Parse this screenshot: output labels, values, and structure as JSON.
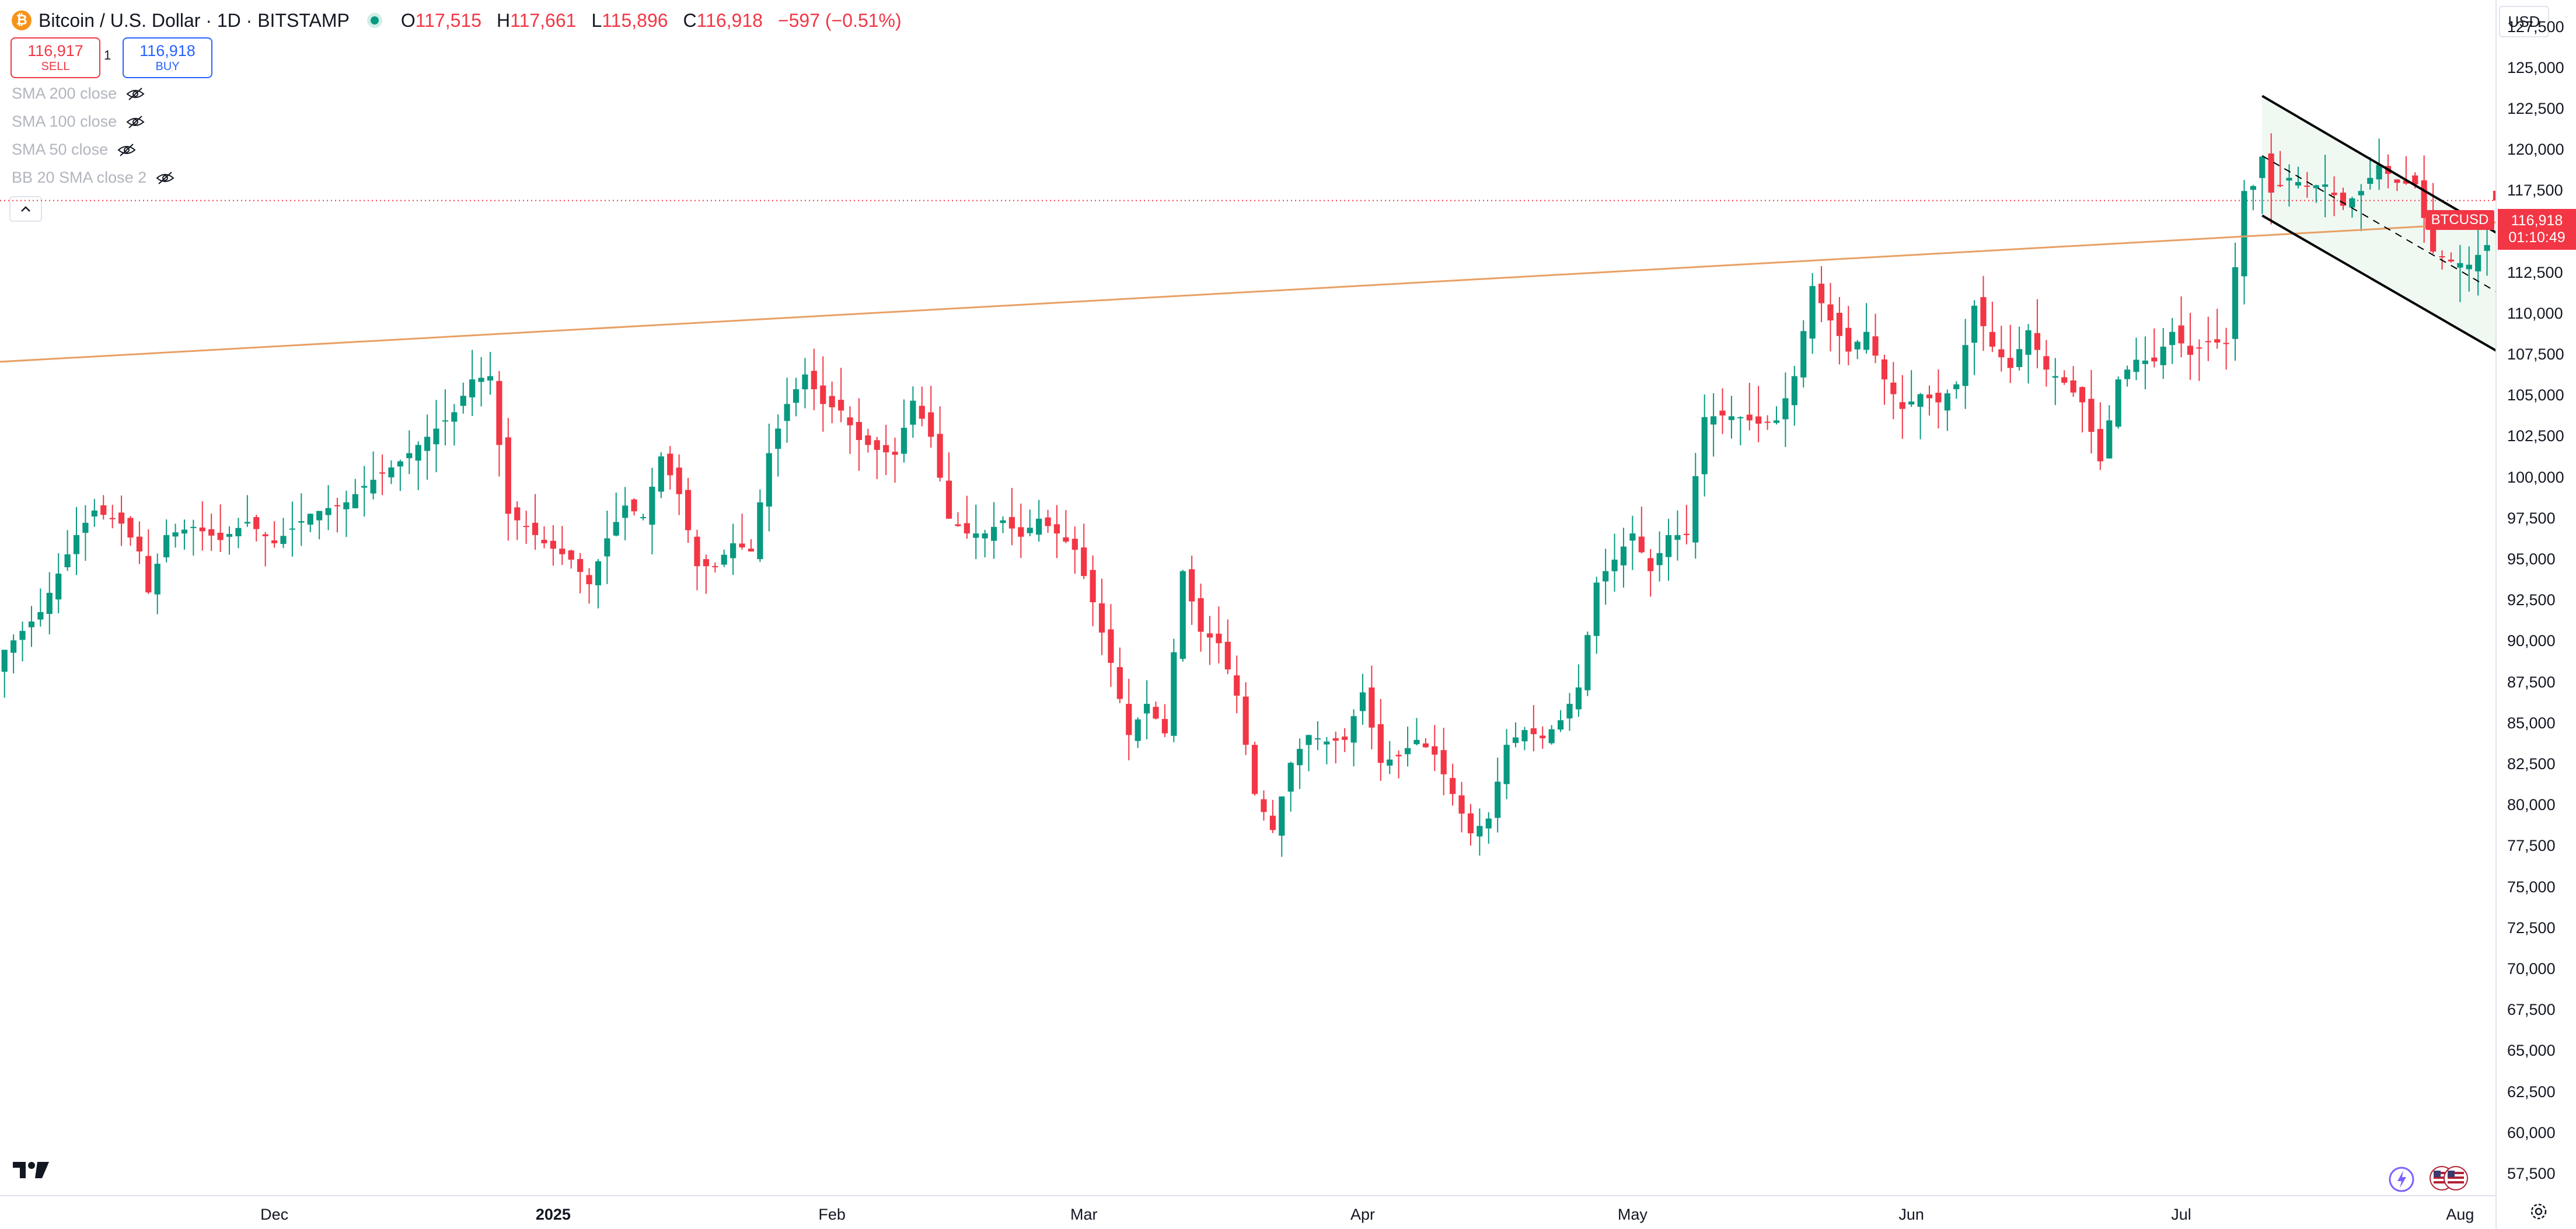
{
  "header": {
    "logo_glyph": "₿",
    "title": "Bitcoin / U.S. Dollar · 1D · BITSTAMP",
    "ohlc": [
      {
        "key": "O",
        "value": "117,515"
      },
      {
        "key": "H",
        "value": "117,661"
      },
      {
        "key": "L",
        "value": "115,896"
      },
      {
        "key": "C",
        "value": "116,918"
      }
    ],
    "change": "−597 (−0.51%)"
  },
  "trade": {
    "sell_price": "116,917",
    "sell_label": "SELL",
    "spread": "1",
    "buy_price": "116,918",
    "buy_label": "BUY"
  },
  "indicators": [
    {
      "label": "SMA 200 close"
    },
    {
      "label": "SMA 100 close"
    },
    {
      "label": "SMA 50 close"
    },
    {
      "label": "BB 20 SMA close 2"
    }
  ],
  "currency": "USD",
  "price_tag": {
    "symbol": "BTCUSD",
    "price": "116,918",
    "countdown": "01:10:49"
  },
  "colors": {
    "up": "#089981",
    "down": "#f23645",
    "trendline": "#e8a064",
    "channel": "#000000",
    "channel_fill": "#e6f3ea"
  },
  "chart_data": {
    "type": "candlestick",
    "title": "Bitcoin / U.S. Dollar · 1D · BITSTAMP",
    "ylim": [
      56500,
      128800
    ],
    "y_ticks": [
      "127,500",
      "125,000",
      "122,500",
      "120,000",
      "117,500",
      "115,000",
      "112,500",
      "110,000",
      "107,500",
      "105,000",
      "102,500",
      "100,000",
      "97,500",
      "95,000",
      "92,500",
      "90,000",
      "87,500",
      "85,000",
      "82,500",
      "80,000",
      "77,500",
      "75,000",
      "72,500",
      "70,000",
      "67,500",
      "65,000",
      "62,500",
      "60,000",
      "57,500"
    ],
    "x_ticks": [
      {
        "label": "Dec",
        "index": 30,
        "bold": false
      },
      {
        "label": "2025",
        "index": 61,
        "bold": true
      },
      {
        "label": "Feb",
        "index": 92,
        "bold": false
      },
      {
        "label": "Mar",
        "index": 120,
        "bold": false
      },
      {
        "label": "Apr",
        "index": 151,
        "bold": false
      },
      {
        "label": "May",
        "index": 181,
        "bold": false
      },
      {
        "label": "Jun",
        "index": 212,
        "bold": false
      },
      {
        "label": "Jul",
        "index": 242,
        "bold": false
      },
      {
        "label": "Aug",
        "index": 273,
        "bold": false
      }
    ],
    "visible_days": 277.5,
    "first_index": 0,
    "anchors": [
      [
        0,
        89500
      ],
      [
        4,
        91800
      ],
      [
        8,
        96500
      ],
      [
        10,
        98000
      ],
      [
        13,
        97200
      ],
      [
        15,
        95500
      ],
      [
        16,
        93000
      ],
      [
        18,
        96500
      ],
      [
        21,
        97000
      ],
      [
        24,
        96200
      ],
      [
        27,
        97300
      ],
      [
        30,
        96000
      ],
      [
        34,
        97800
      ],
      [
        38,
        98500
      ],
      [
        40,
        99500
      ],
      [
        44,
        101000
      ],
      [
        47,
        102500
      ],
      [
        50,
        104000
      ],
      [
        52,
        106000
      ],
      [
        54,
        106200
      ],
      [
        56,
        97800
      ],
      [
        58,
        97000
      ],
      [
        60,
        96000
      ],
      [
        63,
        95000
      ],
      [
        65,
        93500
      ],
      [
        67,
        96300
      ],
      [
        69,
        98300
      ],
      [
        71,
        97600
      ],
      [
        73,
        101300
      ],
      [
        75,
        99000
      ],
      [
        77,
        94600
      ],
      [
        79,
        94600
      ],
      [
        81,
        96000
      ],
      [
        83,
        95500
      ],
      [
        85,
        101500
      ],
      [
        87,
        104500
      ],
      [
        89,
        106300
      ],
      [
        91,
        104500
      ],
      [
        93,
        104100
      ],
      [
        95,
        102300
      ],
      [
        97,
        101700
      ],
      [
        99,
        101400
      ],
      [
        101,
        104700
      ],
      [
        103,
        102500
      ],
      [
        105,
        97500
      ],
      [
        107,
        96600
      ],
      [
        109,
        96600
      ],
      [
        111,
        97400
      ],
      [
        113,
        96400
      ],
      [
        115,
        97500
      ],
      [
        117,
        96600
      ],
      [
        119,
        95600
      ],
      [
        121,
        92400
      ],
      [
        123,
        88700
      ],
      [
        125,
        84300
      ],
      [
        127,
        86200
      ],
      [
        129,
        84400
      ],
      [
        131,
        94300
      ],
      [
        133,
        90600
      ],
      [
        135,
        89900
      ],
      [
        137,
        86700
      ],
      [
        139,
        80700
      ],
      [
        141,
        78500
      ],
      [
        143,
        82600
      ],
      [
        145,
        84300
      ],
      [
        147,
        83900
      ],
      [
        149,
        84000
      ],
      [
        151,
        86900
      ],
      [
        153,
        82600
      ],
      [
        155,
        83000
      ],
      [
        157,
        84000
      ],
      [
        159,
        83100
      ],
      [
        161,
        80700
      ],
      [
        163,
        78300
      ],
      [
        165,
        79200
      ],
      [
        167,
        83700
      ],
      [
        169,
        84600
      ],
      [
        171,
        84100
      ],
      [
        173,
        85200
      ],
      [
        175,
        87200
      ],
      [
        177,
        93600
      ],
      [
        179,
        95000
      ],
      [
        181,
        96600
      ],
      [
        183,
        94300
      ],
      [
        185,
        96500
      ],
      [
        187,
        96500
      ],
      [
        189,
        103700
      ],
      [
        191,
        103800
      ],
      [
        193,
        103700
      ],
      [
        195,
        103300
      ],
      [
        197,
        103500
      ],
      [
        199,
        106200
      ],
      [
        201,
        111700
      ],
      [
        203,
        109600
      ],
      [
        205,
        107700
      ],
      [
        207,
        108900
      ],
      [
        209,
        106000
      ],
      [
        211,
        104200
      ],
      [
        213,
        105100
      ],
      [
        215,
        104600
      ],
      [
        217,
        105700
      ],
      [
        219,
        110500
      ],
      [
        221,
        108000
      ],
      [
        223,
        106700
      ],
      [
        225,
        109000
      ],
      [
        227,
        106600
      ],
      [
        229,
        105800
      ],
      [
        231,
        104600
      ],
      [
        233,
        101000
      ],
      [
        235,
        106000
      ],
      [
        237,
        107200
      ],
      [
        239,
        107100
      ],
      [
        241,
        108900
      ],
      [
        243,
        107500
      ],
      [
        245,
        108300
      ],
      [
        247,
        108200
      ],
      [
        249,
        117500
      ],
      [
        250,
        117800
      ],
      [
        251,
        119600
      ],
      [
        252,
        117400
      ],
      [
        254,
        118300
      ],
      [
        256,
        117800
      ],
      [
        258,
        117900
      ],
      [
        260,
        116600
      ],
      [
        262,
        117500
      ],
      [
        264,
        119100
      ],
      [
        266,
        118000
      ],
      [
        268,
        117900
      ],
      [
        270,
        113800
      ],
      [
        272,
        113200
      ],
      [
        274,
        113000
      ],
      [
        276,
        114200
      ],
      [
        277,
        116918
      ]
    ],
    "trendline": {
      "from": [
        -3,
        107000
      ],
      "to": [
        277.5,
        115600
      ]
    },
    "channel": {
      "upper": {
        "from": [
          251,
          123300
        ],
        "to": [
          277.5,
          114800
        ]
      },
      "lower": {
        "from": [
          251,
          116000
        ],
        "to": [
          277.5,
          107600
        ]
      },
      "mid": {
        "from": [
          251,
          119650
        ],
        "to": [
          277.5,
          111200
        ]
      }
    },
    "current_price": 116918
  }
}
